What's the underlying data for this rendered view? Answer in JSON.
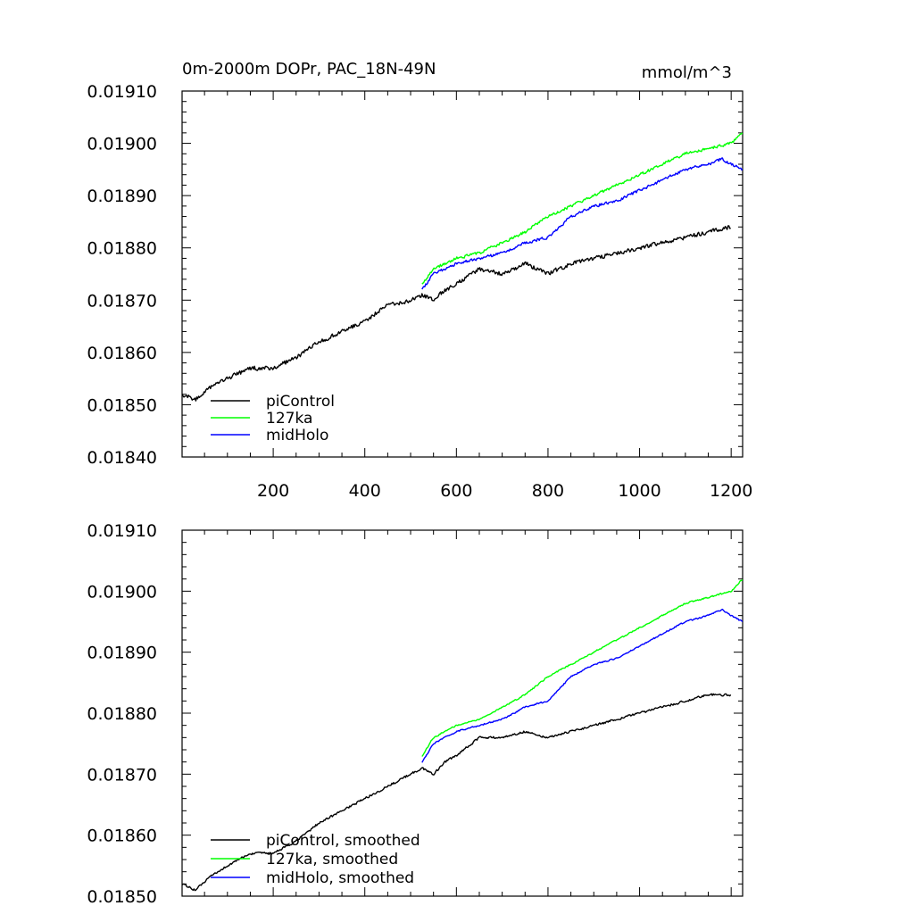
{
  "figure": {
    "title_left": "0m-2000m DOPr, PAC_18N-49N",
    "title_right": "mmol/m^3"
  },
  "chart_data": [
    {
      "type": "line",
      "panel": "top",
      "title": "0m-2000m DOPr, PAC_18N-49N",
      "units": "mmol/m^3",
      "xlim": [
        1,
        1225
      ],
      "ylim": [
        0.0184,
        0.0191
      ],
      "xticks": [
        200,
        400,
        600,
        800,
        1000,
        1200
      ],
      "xtick_labels": [
        "200",
        "400",
        "600",
        "800",
        "1000",
        "1200"
      ],
      "yticks": [
        0.0184,
        0.0185,
        0.0186,
        0.0187,
        0.0188,
        0.0189,
        0.019,
        0.0191
      ],
      "ytick_labels": [
        "0.01840",
        "0.01850",
        "0.01860",
        "0.01870",
        "0.01880",
        "0.01890",
        "0.01900",
        "0.01910"
      ],
      "legend_position": "bottom-left",
      "series": [
        {
          "name": "piControl",
          "label": "piControl",
          "color": "#000000",
          "noise": 4.5e-06,
          "x": [
            1,
            30,
            60,
            100,
            150,
            200,
            250,
            300,
            350,
            400,
            450,
            500,
            525,
            550,
            575,
            600,
            650,
            700,
            750,
            800,
            850,
            900,
            950,
            1000,
            1050,
            1100,
            1150,
            1200
          ],
          "y": [
            0.01852,
            0.01851,
            0.01853,
            0.01855,
            0.01857,
            0.01857,
            0.01859,
            0.01862,
            0.01864,
            0.01866,
            0.01869,
            0.0187,
            0.01871,
            0.0187,
            0.01872,
            0.01873,
            0.01876,
            0.01875,
            0.01877,
            0.01875,
            0.01877,
            0.01878,
            0.01879,
            0.0188,
            0.01881,
            0.01882,
            0.01883,
            0.01884
          ]
        },
        {
          "name": "127ka",
          "label": "127ka",
          "color": "#00ff00",
          "noise": 3e-06,
          "x": [
            525,
            550,
            600,
            650,
            700,
            750,
            800,
            850,
            900,
            950,
            1000,
            1050,
            1100,
            1150,
            1200,
            1225
          ],
          "y": [
            0.01873,
            0.01876,
            0.01878,
            0.01879,
            0.01881,
            0.01883,
            0.01886,
            0.01888,
            0.0189,
            0.01892,
            0.01894,
            0.01896,
            0.01898,
            0.01899,
            0.019,
            0.01902
          ]
        },
        {
          "name": "midHolo",
          "label": "midHolo",
          "color": "#0000ff",
          "noise": 3e-06,
          "x": [
            525,
            550,
            600,
            650,
            700,
            750,
            800,
            850,
            900,
            950,
            1000,
            1050,
            1100,
            1150,
            1180,
            1200,
            1225
          ],
          "y": [
            0.01872,
            0.01875,
            0.01877,
            0.01878,
            0.01879,
            0.01881,
            0.01882,
            0.01886,
            0.01888,
            0.01889,
            0.01891,
            0.01893,
            0.01895,
            0.01896,
            0.01897,
            0.01896,
            0.01895
          ]
        }
      ]
    },
    {
      "type": "line",
      "panel": "bottom",
      "xlim": [
        1,
        1225
      ],
      "ylim": [
        0.0185,
        0.0191
      ],
      "xticks": [
        200,
        400,
        600,
        800,
        1000,
        1200
      ],
      "xtick_labels": [],
      "yticks": [
        0.0185,
        0.0186,
        0.0187,
        0.0188,
        0.0189,
        0.019,
        0.0191
      ],
      "ytick_labels": [
        "0.01850",
        "0.01860",
        "0.01870",
        "0.01880",
        "0.01890",
        "0.01900",
        "0.01910"
      ],
      "legend_position": "bottom-left",
      "series": [
        {
          "name": "piControl, smoothed",
          "label": "piControl, smoothed",
          "color": "#000000",
          "noise": 2e-06,
          "x": [
            1,
            30,
            60,
            100,
            150,
            200,
            250,
            300,
            350,
            400,
            450,
            500,
            525,
            550,
            575,
            600,
            650,
            700,
            750,
            800,
            850,
            900,
            950,
            1000,
            1050,
            1100,
            1150,
            1200
          ],
          "y": [
            0.01852,
            0.01851,
            0.01853,
            0.01855,
            0.01857,
            0.01857,
            0.01859,
            0.01862,
            0.01864,
            0.01866,
            0.01868,
            0.0187,
            0.01871,
            0.0187,
            0.01872,
            0.01873,
            0.01876,
            0.01876,
            0.01877,
            0.01876,
            0.01877,
            0.01878,
            0.01879,
            0.0188,
            0.01881,
            0.01882,
            0.01883,
            0.01883
          ]
        },
        {
          "name": "127ka, smoothed",
          "label": "127ka, smoothed",
          "color": "#00ff00",
          "noise": 1.3e-06,
          "x": [
            525,
            550,
            600,
            650,
            700,
            750,
            800,
            850,
            900,
            950,
            1000,
            1050,
            1100,
            1150,
            1200,
            1225
          ],
          "y": [
            0.01873,
            0.01876,
            0.01878,
            0.01879,
            0.01881,
            0.01883,
            0.01886,
            0.01888,
            0.0189,
            0.01892,
            0.01894,
            0.01896,
            0.01898,
            0.01899,
            0.019,
            0.01902
          ]
        },
        {
          "name": "midHolo, smoothed",
          "label": "midHolo, smoothed",
          "color": "#0000ff",
          "noise": 1.3e-06,
          "x": [
            525,
            550,
            600,
            650,
            700,
            750,
            800,
            850,
            900,
            950,
            1000,
            1050,
            1100,
            1150,
            1180,
            1200,
            1225
          ],
          "y": [
            0.01872,
            0.01875,
            0.01877,
            0.01878,
            0.01879,
            0.01881,
            0.01882,
            0.01886,
            0.01888,
            0.01889,
            0.01891,
            0.01893,
            0.01895,
            0.01896,
            0.01897,
            0.01896,
            0.01895
          ]
        }
      ]
    }
  ]
}
